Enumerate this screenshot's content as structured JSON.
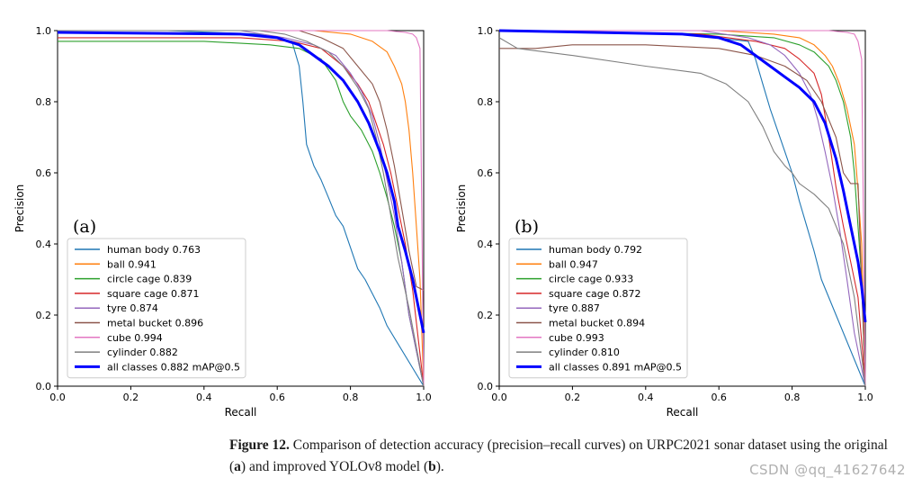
{
  "figure": {
    "caption_label": "Figure 12.",
    "caption_text_1": " Comparison of detection accuracy (precision–recall curves) on URPC2021 sonar dataset using the original (",
    "caption_a": "a",
    "caption_text_2": ") and improved YOLOv8 model (",
    "caption_b": "b",
    "caption_text_3": ").",
    "watermark": "CSDN @qq_41627642"
  },
  "colors": {
    "human body": "#1f77b4",
    "ball": "#ff7f0e",
    "circle cage": "#2ca02c",
    "square cage": "#d62728",
    "tyre": "#9467bd",
    "metal bucket": "#8c564b",
    "cube": "#e377c2",
    "cylinder": "#7f7f7f",
    "all classes": "#0000ff"
  },
  "chart_data": [
    {
      "type": "line",
      "panel_label": "(a)",
      "xlabel": "Recall",
      "ylabel": "Precision",
      "xlim": [
        0,
        1
      ],
      "ylim": [
        0,
        1
      ],
      "xticks": [
        "0.0",
        "0.2",
        "0.4",
        "0.6",
        "0.8",
        "1.0"
      ],
      "yticks": [
        "0.0",
        "0.2",
        "0.4",
        "0.6",
        "0.8",
        "1.0"
      ],
      "legend_position": "lower-left",
      "series": [
        {
          "name": "human body",
          "label": "human body 0.763",
          "x": [
            0,
            0.3,
            0.55,
            0.64,
            0.66,
            0.67,
            0.68,
            0.7,
            0.72,
            0.74,
            0.76,
            0.78,
            0.8,
            0.82,
            0.84,
            0.86,
            0.88,
            0.9,
            1.0
          ],
          "y": [
            1,
            1,
            0.99,
            0.97,
            0.9,
            0.8,
            0.68,
            0.62,
            0.58,
            0.53,
            0.48,
            0.45,
            0.39,
            0.33,
            0.3,
            0.26,
            0.22,
            0.17,
            0
          ]
        },
        {
          "name": "ball",
          "label": "ball 0.941",
          "x": [
            0,
            0.5,
            0.7,
            0.8,
            0.86,
            0.9,
            0.92,
            0.94,
            0.95,
            0.96,
            0.97,
            0.98,
            0.99,
            1.0
          ],
          "y": [
            1,
            1,
            1,
            0.99,
            0.97,
            0.94,
            0.9,
            0.85,
            0.8,
            0.72,
            0.6,
            0.45,
            0.3,
            0
          ]
        },
        {
          "name": "circle cage",
          "label": "circle cage 0.839",
          "x": [
            0,
            0.4,
            0.58,
            0.66,
            0.72,
            0.76,
            0.78,
            0.8,
            0.83,
            0.86,
            0.88,
            0.9,
            0.92,
            0.94,
            0.96,
            1.0
          ],
          "y": [
            0.97,
            0.97,
            0.96,
            0.95,
            0.92,
            0.86,
            0.8,
            0.76,
            0.72,
            0.66,
            0.6,
            0.53,
            0.45,
            0.35,
            0.2,
            0
          ]
        },
        {
          "name": "square cage",
          "label": "square cage 0.871",
          "x": [
            0,
            0.5,
            0.64,
            0.72,
            0.78,
            0.82,
            0.85,
            0.87,
            0.89,
            0.91,
            0.93,
            0.95,
            0.97,
            1.0
          ],
          "y": [
            0.98,
            0.98,
            0.97,
            0.95,
            0.9,
            0.85,
            0.8,
            0.74,
            0.68,
            0.6,
            0.5,
            0.4,
            0.27,
            0
          ]
        },
        {
          "name": "tyre",
          "label": "tyre 0.874",
          "x": [
            0,
            0.5,
            0.62,
            0.7,
            0.76,
            0.8,
            0.83,
            0.86,
            0.88,
            0.9,
            0.92,
            0.94,
            0.96,
            1.0
          ],
          "y": [
            1,
            1,
            0.98,
            0.96,
            0.93,
            0.88,
            0.83,
            0.76,
            0.68,
            0.58,
            0.48,
            0.35,
            0.2,
            0
          ]
        },
        {
          "name": "metal bucket",
          "label": "metal bucket 0.896",
          "x": [
            0,
            0.66,
            0.72,
            0.78,
            0.82,
            0.86,
            0.88,
            0.9,
            0.92,
            0.94,
            0.96,
            0.98,
            1.0
          ],
          "y": [
            1,
            1,
            0.98,
            0.95,
            0.9,
            0.85,
            0.8,
            0.72,
            0.62,
            0.5,
            0.38,
            0.28,
            0.27
          ]
        },
        {
          "name": "cube",
          "label": "cube 0.994",
          "x": [
            0,
            0.8,
            0.9,
            0.95,
            0.97,
            0.98,
            0.99,
            1.0
          ],
          "y": [
            1,
            1,
            1,
            0.995,
            0.99,
            0.98,
            0.95,
            0
          ]
        },
        {
          "name": "cylinder",
          "label": "cylinder 0.882",
          "x": [
            0,
            0.55,
            0.62,
            0.68,
            0.74,
            0.78,
            0.82,
            0.85,
            0.87,
            0.89,
            0.91,
            0.93,
            0.96,
            1.0
          ],
          "y": [
            1,
            1,
            0.99,
            0.97,
            0.94,
            0.9,
            0.84,
            0.78,
            0.7,
            0.6,
            0.48,
            0.36,
            0.22,
            0
          ]
        },
        {
          "name": "all classes",
          "label": "all classes 0.882 mAP@0.5",
          "x": [
            0,
            0.5,
            0.6,
            0.66,
            0.7,
            0.74,
            0.78,
            0.82,
            0.85,
            0.88,
            0.9,
            0.92,
            0.93,
            0.95,
            0.97,
            0.99,
            1.0
          ],
          "y": [
            0.995,
            0.99,
            0.98,
            0.96,
            0.93,
            0.9,
            0.86,
            0.8,
            0.74,
            0.66,
            0.6,
            0.52,
            0.45,
            0.38,
            0.3,
            0.2,
            0.15
          ]
        }
      ]
    },
    {
      "type": "line",
      "panel_label": "(b)",
      "xlabel": "Recall",
      "ylabel": "Precision",
      "xlim": [
        0,
        1
      ],
      "ylim": [
        0,
        1
      ],
      "xticks": [
        "0.0",
        "0.2",
        "0.4",
        "0.6",
        "0.8",
        "1.0"
      ],
      "yticks": [
        "0.0",
        "0.2",
        "0.4",
        "0.6",
        "0.8",
        "1.0"
      ],
      "legend_position": "lower-left",
      "series": [
        {
          "name": "human body",
          "label": "human body 0.792",
          "x": [
            0,
            0.5,
            0.68,
            0.7,
            0.72,
            0.74,
            0.76,
            0.78,
            0.8,
            0.82,
            0.84,
            0.86,
            0.88,
            1.0
          ],
          "y": [
            1,
            0.99,
            0.97,
            0.92,
            0.85,
            0.78,
            0.72,
            0.66,
            0.6,
            0.52,
            0.45,
            0.38,
            0.3,
            0
          ]
        },
        {
          "name": "ball",
          "label": "ball 0.947",
          "x": [
            0,
            0.6,
            0.75,
            0.82,
            0.86,
            0.89,
            0.91,
            0.93,
            0.95,
            0.97,
            0.98,
            0.99,
            1.0
          ],
          "y": [
            1,
            1,
            0.99,
            0.98,
            0.96,
            0.93,
            0.9,
            0.85,
            0.78,
            0.68,
            0.55,
            0.4,
            0
          ]
        },
        {
          "name": "circle cage",
          "label": "circle cage 0.933",
          "x": [
            0,
            0.6,
            0.75,
            0.82,
            0.86,
            0.9,
            0.92,
            0.94,
            0.96,
            0.97,
            0.98,
            0.99,
            1.0
          ],
          "y": [
            1,
            0.99,
            0.98,
            0.96,
            0.94,
            0.9,
            0.86,
            0.8,
            0.7,
            0.6,
            0.45,
            0.3,
            0
          ]
        },
        {
          "name": "square cage",
          "label": "square cage 0.872",
          "x": [
            0,
            0.55,
            0.7,
            0.78,
            0.82,
            0.86,
            0.88,
            0.9,
            0.92,
            0.94,
            0.96,
            0.98,
            1.0
          ],
          "y": [
            1,
            0.99,
            0.97,
            0.95,
            0.92,
            0.88,
            0.82,
            0.7,
            0.56,
            0.45,
            0.35,
            0.25,
            0
          ]
        },
        {
          "name": "tyre",
          "label": "tyre 0.887",
          "x": [
            0,
            0.55,
            0.68,
            0.74,
            0.78,
            0.82,
            0.85,
            0.87,
            0.89,
            0.91,
            0.93,
            0.95,
            0.97,
            1.0
          ],
          "y": [
            1,
            1,
            0.98,
            0.96,
            0.93,
            0.88,
            0.82,
            0.75,
            0.66,
            0.56,
            0.44,
            0.3,
            0.15,
            0
          ]
        },
        {
          "name": "metal bucket",
          "label": "metal bucket 0.894",
          "x": [
            0,
            0.1,
            0.2,
            0.4,
            0.6,
            0.7,
            0.78,
            0.84,
            0.88,
            0.92,
            0.94,
            0.96,
            0.98,
            1.0
          ],
          "y": [
            0.95,
            0.95,
            0.96,
            0.96,
            0.95,
            0.93,
            0.9,
            0.86,
            0.8,
            0.7,
            0.6,
            0.57,
            0.57,
            0
          ]
        },
        {
          "name": "cube",
          "label": "cube 0.993",
          "x": [
            0,
            0.8,
            0.9,
            0.95,
            0.97,
            0.98,
            0.99,
            1.0
          ],
          "y": [
            1,
            1,
            1,
            0.995,
            0.99,
            0.97,
            0.92,
            0
          ]
        },
        {
          "name": "cylinder",
          "label": "cylinder 0.810",
          "x": [
            0,
            0.05,
            0.2,
            0.4,
            0.55,
            0.62,
            0.68,
            0.72,
            0.75,
            0.78,
            0.8,
            0.82,
            0.86,
            0.9,
            0.94,
            0.97,
            1.0
          ],
          "y": [
            0.98,
            0.95,
            0.93,
            0.9,
            0.88,
            0.85,
            0.8,
            0.73,
            0.66,
            0.62,
            0.6,
            0.57,
            0.54,
            0.5,
            0.4,
            0.25,
            0
          ]
        },
        {
          "name": "all classes",
          "label": "all classes 0.891 mAP@0.5",
          "x": [
            0,
            0.5,
            0.6,
            0.66,
            0.7,
            0.74,
            0.78,
            0.82,
            0.86,
            0.89,
            0.92,
            0.94,
            0.96,
            0.98,
            0.99,
            1.0
          ],
          "y": [
            1,
            0.99,
            0.98,
            0.96,
            0.93,
            0.9,
            0.87,
            0.84,
            0.8,
            0.74,
            0.64,
            0.55,
            0.45,
            0.35,
            0.28,
            0.18
          ]
        }
      ]
    }
  ]
}
